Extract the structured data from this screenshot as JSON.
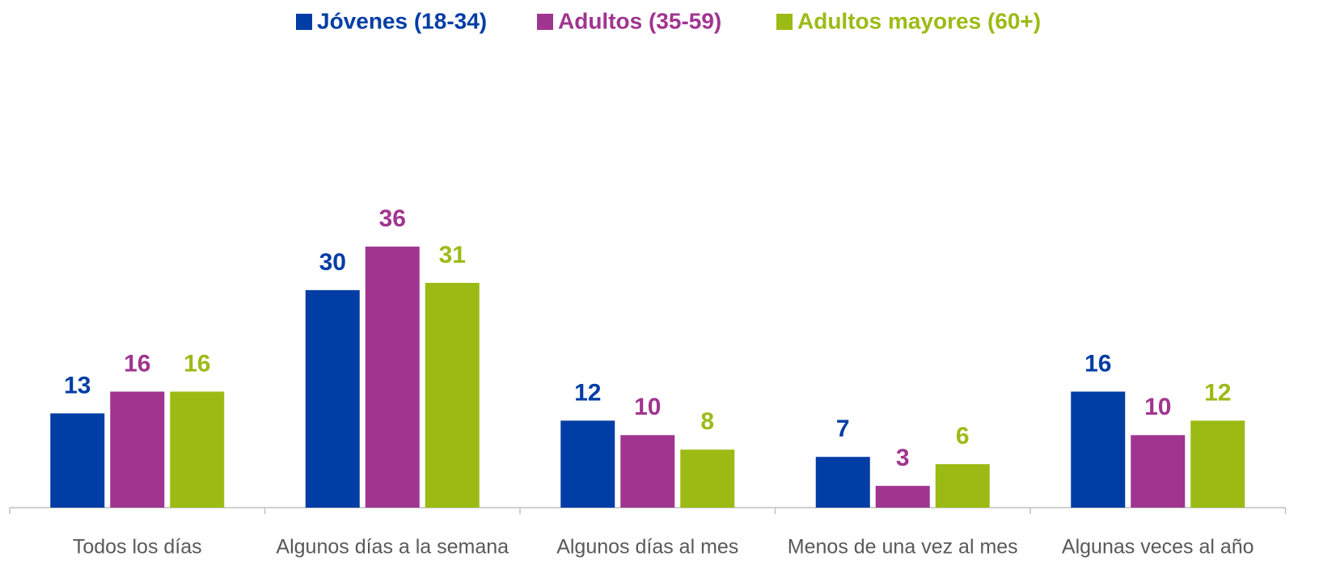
{
  "chart_data": {
    "type": "bar",
    "categories": [
      "Todos los días",
      "Algunos días a la semana",
      "Algunos días al mes",
      "Menos de una vez al mes",
      "Algunas veces al año"
    ],
    "series": [
      {
        "name": "Jóvenes (18-34)",
        "color": "#003da5",
        "values": [
          13,
          30,
          12,
          7,
          16
        ]
      },
      {
        "name": "Adultos (35-59)",
        "color": "#a03590",
        "values": [
          16,
          36,
          10,
          3,
          10
        ]
      },
      {
        "name": "Adultos mayores (60+)",
        "color": "#9bbb14",
        "values": [
          16,
          31,
          8,
          6,
          12
        ]
      }
    ],
    "legend": "top"
  }
}
